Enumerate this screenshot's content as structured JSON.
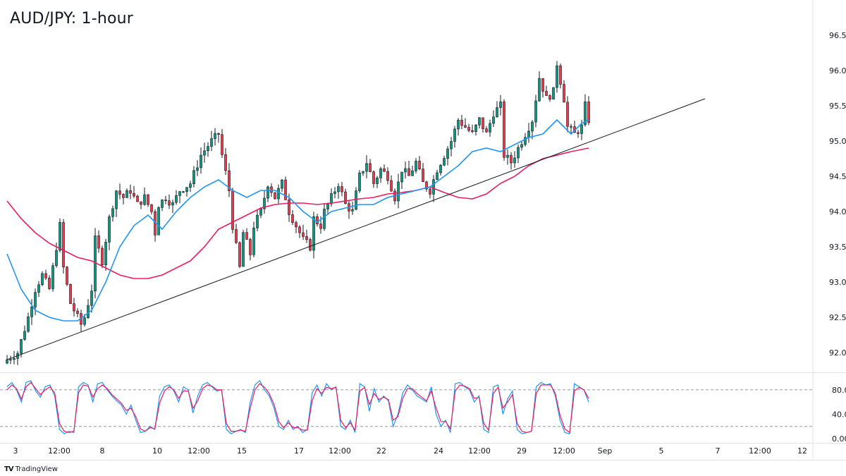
{
  "title": "AUD/JPY: 1-hour",
  "brand": {
    "logo": "TV",
    "name": "TradingView"
  },
  "colors": {
    "up": "#089981",
    "down": "#f23645",
    "candle_outline": "#131722",
    "ma_fast": "#2196f3",
    "ma_slow": "#e91e63",
    "trendline": "#131722",
    "stoch_k": "#2196f3",
    "stoch_d": "#e91e63",
    "grid_dash": "#9598a1",
    "axis_border": "#e0e3eb"
  },
  "chart_data": [
    {
      "type": "candlestick",
      "title": "AUD/JPY: 1-hour",
      "ylim": [
        91.75,
        96.75
      ],
      "y_ticks": [
        "92.000",
        "92.500",
        "93.000",
        "93.500",
        "94.000",
        "94.500",
        "95.000",
        "95.500",
        "96.000",
        "96.500"
      ],
      "x_ticks": [
        "3",
        "12:00",
        "8",
        "10",
        "12:00",
        "15",
        "17",
        "12:00",
        "22",
        "24",
        "12:00",
        "29",
        "12:00",
        "Sep",
        "5",
        "7",
        "12:00",
        "12"
      ],
      "price_path": [
        [
          0,
          91.9
        ],
        [
          3,
          92.0
        ],
        [
          6,
          92.5
        ],
        [
          8,
          92.9
        ],
        [
          10,
          93.1
        ],
        [
          12,
          92.9
        ],
        [
          14,
          93.5
        ],
        [
          15,
          93.8
        ],
        [
          16,
          93.2
        ],
        [
          18,
          92.7
        ],
        [
          20,
          92.5
        ],
        [
          21,
          92.4
        ],
        [
          22,
          92.5
        ],
        [
          24,
          92.9
        ],
        [
          25,
          93.6
        ],
        [
          27,
          93.3
        ],
        [
          29,
          93.9
        ],
        [
          31,
          94.3
        ],
        [
          33,
          94.2
        ],
        [
          35,
          94.3
        ],
        [
          37,
          94.1
        ],
        [
          39,
          94.2
        ],
        [
          41,
          94.0
        ],
        [
          42,
          93.7
        ],
        [
          43,
          94.1
        ],
        [
          45,
          94.2
        ],
        [
          47,
          94.1
        ],
        [
          49,
          94.3
        ],
        [
          52,
          94.4
        ],
        [
          55,
          94.8
        ],
        [
          58,
          95.0
        ],
        [
          60,
          95.1
        ],
        [
          61,
          94.8
        ],
        [
          63,
          94.3
        ],
        [
          64,
          93.8
        ],
        [
          66,
          93.2
        ],
        [
          67,
          93.7
        ],
        [
          69,
          93.4
        ],
        [
          70,
          93.8
        ],
        [
          72,
          94.0
        ],
        [
          74,
          94.4
        ],
        [
          76,
          94.2
        ],
        [
          78,
          94.4
        ],
        [
          80,
          94.0
        ],
        [
          82,
          93.8
        ],
        [
          84,
          93.6
        ],
        [
          86,
          93.5
        ],
        [
          87,
          93.9
        ],
        [
          89,
          93.8
        ],
        [
          90,
          94.0
        ],
        [
          92,
          94.2
        ],
        [
          94,
          94.4
        ],
        [
          96,
          94.1
        ],
        [
          98,
          94.0
        ],
        [
          100,
          94.5
        ],
        [
          102,
          94.7
        ],
        [
          104,
          94.4
        ],
        [
          106,
          94.6
        ],
        [
          108,
          94.5
        ],
        [
          110,
          94.2
        ],
        [
          112,
          94.6
        ],
        [
          114,
          94.5
        ],
        [
          116,
          94.7
        ],
        [
          118,
          94.4
        ],
        [
          120,
          94.3
        ],
        [
          122,
          94.6
        ],
        [
          124,
          94.8
        ],
        [
          126,
          95.0
        ],
        [
          128,
          95.3
        ],
        [
          130,
          95.2
        ],
        [
          132,
          95.1
        ],
        [
          134,
          95.3
        ],
        [
          136,
          95.1
        ],
        [
          138,
          95.4
        ],
        [
          140,
          95.5
        ],
        [
          141,
          94.8
        ],
        [
          143,
          94.7
        ],
        [
          145,
          94.9
        ],
        [
          147,
          95.1
        ],
        [
          149,
          95.3
        ],
        [
          151,
          95.9
        ],
        [
          153,
          95.6
        ],
        [
          155,
          95.7
        ],
        [
          156,
          96.1
        ],
        [
          158,
          95.6
        ],
        [
          159,
          95.2
        ],
        [
          161,
          95.1
        ],
        [
          163,
          95.2
        ],
        [
          164,
          95.5
        ],
        [
          165,
          95.3
        ]
      ],
      "lows_visible_min": 91.72,
      "highs_visible_max": 96.2,
      "ma_fast_path": [
        [
          0,
          93.4
        ],
        [
          4,
          92.9
        ],
        [
          8,
          92.6
        ],
        [
          12,
          92.5
        ],
        [
          16,
          92.45
        ],
        [
          20,
          92.45
        ],
        [
          24,
          92.6
        ],
        [
          28,
          93.0
        ],
        [
          32,
          93.5
        ],
        [
          36,
          93.8
        ],
        [
          40,
          93.95
        ],
        [
          44,
          93.75
        ],
        [
          48,
          94.0
        ],
        [
          52,
          94.2
        ],
        [
          56,
          94.35
        ],
        [
          60,
          94.45
        ],
        [
          64,
          94.3
        ],
        [
          68,
          94.2
        ],
        [
          72,
          94.3
        ],
        [
          76,
          94.3
        ],
        [
          80,
          94.2
        ],
        [
          84,
          94.0
        ],
        [
          88,
          93.85
        ],
        [
          92,
          94.0
        ],
        [
          96,
          94.05
        ],
        [
          100,
          94.1
        ],
        [
          104,
          94.1
        ],
        [
          108,
          94.2
        ],
        [
          112,
          94.25
        ],
        [
          116,
          94.3
        ],
        [
          120,
          94.35
        ],
        [
          124,
          94.5
        ],
        [
          128,
          94.65
        ],
        [
          132,
          94.85
        ],
        [
          136,
          94.9
        ],
        [
          140,
          94.85
        ],
        [
          144,
          94.95
        ],
        [
          148,
          95.05
        ],
        [
          152,
          95.1
        ],
        [
          156,
          95.3
        ],
        [
          160,
          95.1
        ],
        [
          163,
          95.25
        ],
        [
          165,
          95.3
        ]
      ],
      "ma_slow_path": [
        [
          0,
          94.15
        ],
        [
          4,
          93.9
        ],
        [
          8,
          93.7
        ],
        [
          12,
          93.55
        ],
        [
          16,
          93.45
        ],
        [
          20,
          93.35
        ],
        [
          24,
          93.3
        ],
        [
          28,
          93.2
        ],
        [
          32,
          93.1
        ],
        [
          36,
          93.05
        ],
        [
          40,
          93.05
        ],
        [
          44,
          93.1
        ],
        [
          48,
          93.2
        ],
        [
          52,
          93.3
        ],
        [
          56,
          93.5
        ],
        [
          60,
          93.75
        ],
        [
          64,
          93.85
        ],
        [
          68,
          93.95
        ],
        [
          72,
          94.05
        ],
        [
          76,
          94.1
        ],
        [
          80,
          94.12
        ],
        [
          84,
          94.12
        ],
        [
          88,
          94.1
        ],
        [
          92,
          94.12
        ],
        [
          96,
          94.15
        ],
        [
          100,
          94.18
        ],
        [
          104,
          94.2
        ],
        [
          108,
          94.25
        ],
        [
          112,
          94.27
        ],
        [
          116,
          94.3
        ],
        [
          120,
          94.35
        ],
        [
          124,
          94.27
        ],
        [
          128,
          94.2
        ],
        [
          132,
          94.18
        ],
        [
          136,
          94.25
        ],
        [
          140,
          94.4
        ],
        [
          144,
          94.5
        ],
        [
          148,
          94.65
        ],
        [
          152,
          94.75
        ],
        [
          156,
          94.8
        ],
        [
          160,
          94.85
        ],
        [
          165,
          94.9
        ]
      ],
      "trendline": {
        "from": [
          0,
          91.9
        ],
        "to": [
          198,
          95.6
        ]
      }
    },
    {
      "type": "line",
      "title": "",
      "ylim": [
        -5,
        100
      ],
      "y_ticks": [
        "80.00",
        "40.00",
        "0.00"
      ],
      "guide_levels": [
        80,
        20
      ],
      "series": [
        {
          "values": [
            85,
            92,
            80,
            60,
            92,
            95,
            78,
            68,
            85,
            88,
            70,
            15,
            8,
            12,
            10,
            85,
            92,
            88,
            60,
            90,
            92,
            80,
            70,
            62,
            55,
            40,
            55,
            30,
            10,
            12,
            20,
            15,
            70,
            85,
            88,
            78,
            60,
            85,
            80,
            42,
            70,
            88,
            92,
            85,
            78,
            80,
            15,
            8,
            12,
            15,
            10,
            60,
            88,
            95,
            80,
            70,
            50,
            20,
            15,
            30,
            15,
            20,
            10,
            15,
            75,
            88,
            70,
            90,
            80,
            85,
            20,
            15,
            30,
            10,
            90,
            85,
            45,
            82,
            60,
            70,
            62,
            20,
            40,
            75,
            88,
            80,
            70,
            65,
            60,
            85,
            40,
            20,
            30,
            10,
            90,
            92,
            85,
            80,
            60,
            70,
            15,
            10,
            85,
            88,
            40,
            65,
            78,
            15,
            8,
            10,
            12,
            85,
            92,
            88,
            90,
            70,
            30,
            10,
            8,
            90,
            85,
            80,
            60
          ]
        },
        {
          "values": [
            80,
            88,
            82,
            65,
            85,
            92,
            82,
            72,
            80,
            85,
            75,
            25,
            12,
            10,
            12,
            75,
            88,
            86,
            68,
            82,
            88,
            82,
            72,
            65,
            58,
            46,
            50,
            36,
            16,
            12,
            18,
            16,
            58,
            78,
            85,
            80,
            66,
            78,
            78,
            50,
            62,
            82,
            88,
            86,
            80,
            80,
            25,
            12,
            12,
            14,
            12,
            50,
            80,
            90,
            84,
            74,
            56,
            28,
            18,
            26,
            18,
            18,
            14,
            14,
            62,
            82,
            74,
            84,
            82,
            84,
            30,
            18,
            26,
            14,
            78,
            84,
            56,
            74,
            64,
            68,
            64,
            30,
            36,
            66,
            82,
            82,
            74,
            68,
            62,
            78,
            50,
            28,
            28,
            16,
            78,
            88,
            86,
            82,
            66,
            68,
            25,
            14,
            74,
            84,
            50,
            60,
            72,
            25,
            12,
            10,
            12,
            74,
            88,
            88,
            88,
            74,
            38,
            16,
            10,
            78,
            84,
            80,
            66
          ]
        }
      ]
    }
  ]
}
